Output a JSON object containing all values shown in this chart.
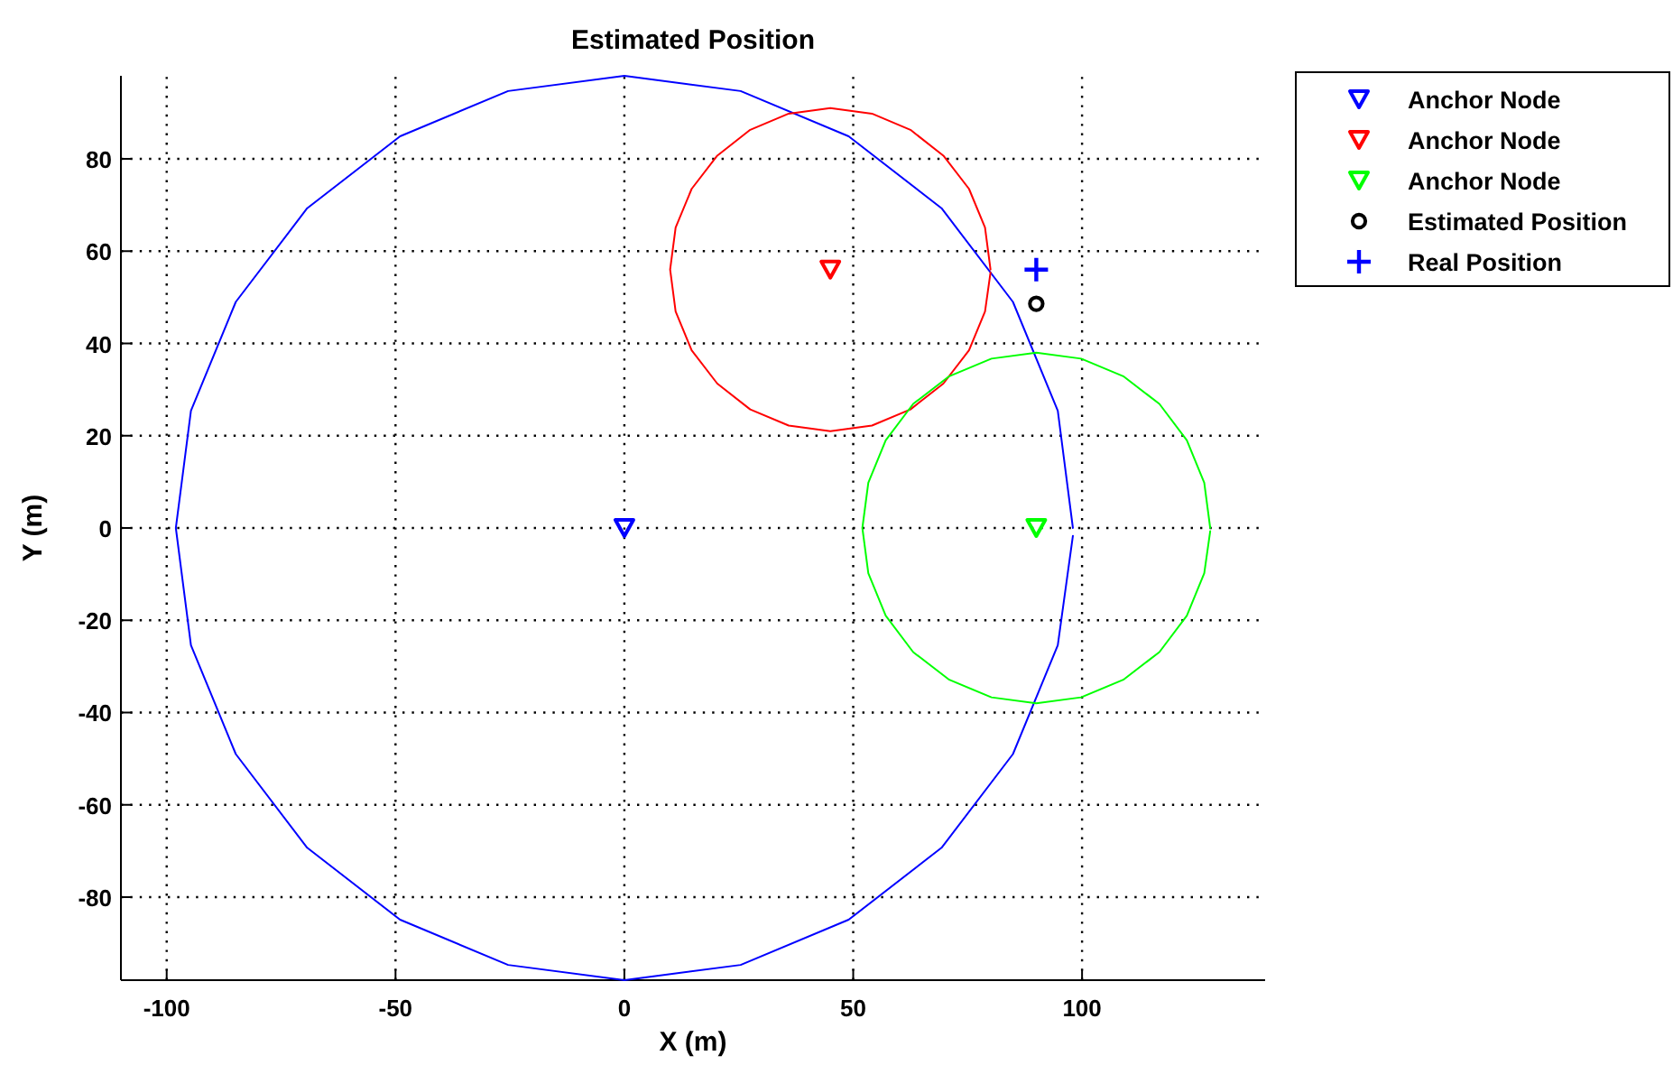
{
  "chart_data": {
    "type": "scatter",
    "title": "Estimated Position",
    "xlabel": "X (m)",
    "ylabel": "Y (m)",
    "xlim": [
      -110,
      140
    ],
    "ylim": [
      -98,
      98
    ],
    "xticks": [
      -100,
      -50,
      0,
      50,
      100
    ],
    "yticks": [
      -80,
      -60,
      -40,
      -20,
      0,
      20,
      40,
      60,
      80
    ],
    "grid": true,
    "legend": "top right",
    "series": [
      {
        "type": "line",
        "color": "#0000ff",
        "marker": "none",
        "x": [
          98,
          94.7,
          84.9,
          69.3,
          49,
          25.4,
          0,
          -25.4,
          -49,
          -69.3,
          -84.9,
          -94.7,
          -98,
          -94.7,
          -84.9,
          -69.3,
          -49,
          -25.4,
          0,
          25.4,
          49,
          69.3,
          84.9,
          94.7,
          98
        ],
        "values": [
          0,
          25.4,
          49,
          69.3,
          84.9,
          94.7,
          98,
          94.7,
          84.9,
          69.3,
          49,
          25.4,
          0,
          -25.4,
          -49,
          -69.3,
          -84.9,
          -94.7,
          -98,
          -94.7,
          -84.9,
          -69.3,
          -49,
          -25.4,
          -1.7
        ]
      },
      {
        "type": "line",
        "color": "#ff0000",
        "marker": "none",
        "x": [
          80,
          78.8,
          75.3,
          69.7,
          62.5,
          54.1,
          45,
          35.9,
          27.5,
          20.3,
          14.7,
          11.2,
          10,
          11.2,
          14.7,
          20.3,
          27.5,
          35.9,
          45,
          54.1,
          62.5,
          69.7,
          75.3,
          78.8,
          80
        ],
        "values": [
          56,
          65.1,
          73.5,
          80.7,
          86.3,
          89.8,
          91,
          89.8,
          86.3,
          80.7,
          73.5,
          65.1,
          56,
          46.9,
          38.5,
          31.3,
          25.7,
          22.2,
          21,
          22.2,
          25.7,
          31.3,
          38.5,
          46.9,
          55.4
        ]
      },
      {
        "type": "line",
        "color": "#00ff00",
        "marker": "none",
        "x": [
          128,
          126.7,
          122.9,
          116.9,
          109,
          99.8,
          90,
          80.2,
          71,
          63.1,
          57.1,
          53.3,
          52,
          53.3,
          57.1,
          63.1,
          71,
          80.2,
          90,
          99.8,
          109,
          116.9,
          122.9,
          126.7,
          128
        ],
        "values": [
          0,
          9.8,
          19,
          26.9,
          32.9,
          36.7,
          38,
          36.7,
          32.9,
          26.9,
          19,
          9.8,
          0,
          -9.8,
          -19,
          -26.9,
          -32.9,
          -36.7,
          -38,
          -36.7,
          -32.9,
          -26.9,
          -19,
          -9.8,
          -0.7
        ]
      },
      {
        "name": "Anchor Node",
        "type": "scatter",
        "color": "#0000ff",
        "marker": "triangle",
        "x": [
          0
        ],
        "values": [
          0
        ]
      },
      {
        "name": "Anchor Node",
        "type": "scatter",
        "color": "#ff0000",
        "marker": "triangle",
        "x": [
          45
        ],
        "values": [
          56
        ]
      },
      {
        "name": "Anchor Node",
        "type": "scatter",
        "color": "#00ff00",
        "marker": "triangle",
        "x": [
          90
        ],
        "values": [
          0
        ]
      },
      {
        "name": "Estimated Position",
        "type": "scatter",
        "color": "#000000",
        "marker": "circle",
        "x": [
          90
        ],
        "values": [
          48.6
        ]
      },
      {
        "name": "Real Position",
        "type": "scatter",
        "color": "#0000ff",
        "marker": "cross",
        "x": [
          90
        ],
        "values": [
          56
        ]
      }
    ]
  }
}
